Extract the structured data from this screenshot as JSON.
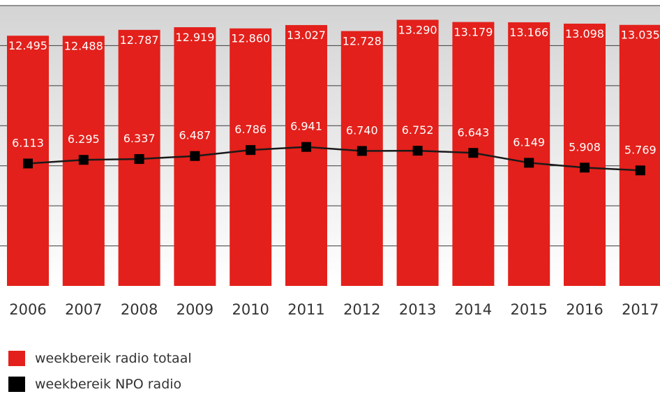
{
  "chart_data": {
    "type": "bar",
    "categories": [
      "2006",
      "2007",
      "2008",
      "2009",
      "2010",
      "2011",
      "2012",
      "2013",
      "2014",
      "2015",
      "2016",
      "2017"
    ],
    "series": [
      {
        "name": "weekbereik radio totaal",
        "kind": "bar",
        "values": [
          12.495,
          12.488,
          12.787,
          12.919,
          12.86,
          13.027,
          12.728,
          13.29,
          13.179,
          13.166,
          13.098,
          13.035
        ],
        "labels": [
          "12.495",
          "12.488",
          "12.787",
          "12.919",
          "12.860",
          "13.027",
          "12.728",
          "13.290",
          "13.179",
          "13.166",
          "13.098",
          "13.035"
        ]
      },
      {
        "name": "weekbereik NPO radio",
        "kind": "line",
        "values": [
          6.113,
          6.295,
          6.337,
          6.487,
          6.786,
          6.941,
          6.74,
          6.752,
          6.643,
          6.149,
          5.908,
          5.769
        ],
        "labels": [
          "6.113",
          "6.295",
          "6.337",
          "6.487",
          "6.786",
          "6.941",
          "6.740",
          "6.752",
          "6.643",
          "6.149",
          "5.908",
          "5.769"
        ]
      }
    ],
    "ylim": [
      0,
      14
    ],
    "grid": true,
    "legend_position": "bottom-left",
    "colors": {
      "bar": "#e3201b",
      "line": "#1a1a1a",
      "marker": "#000000",
      "bar_label": "#ffffff",
      "line_label": "#ffffff",
      "tick": "#333333"
    }
  }
}
